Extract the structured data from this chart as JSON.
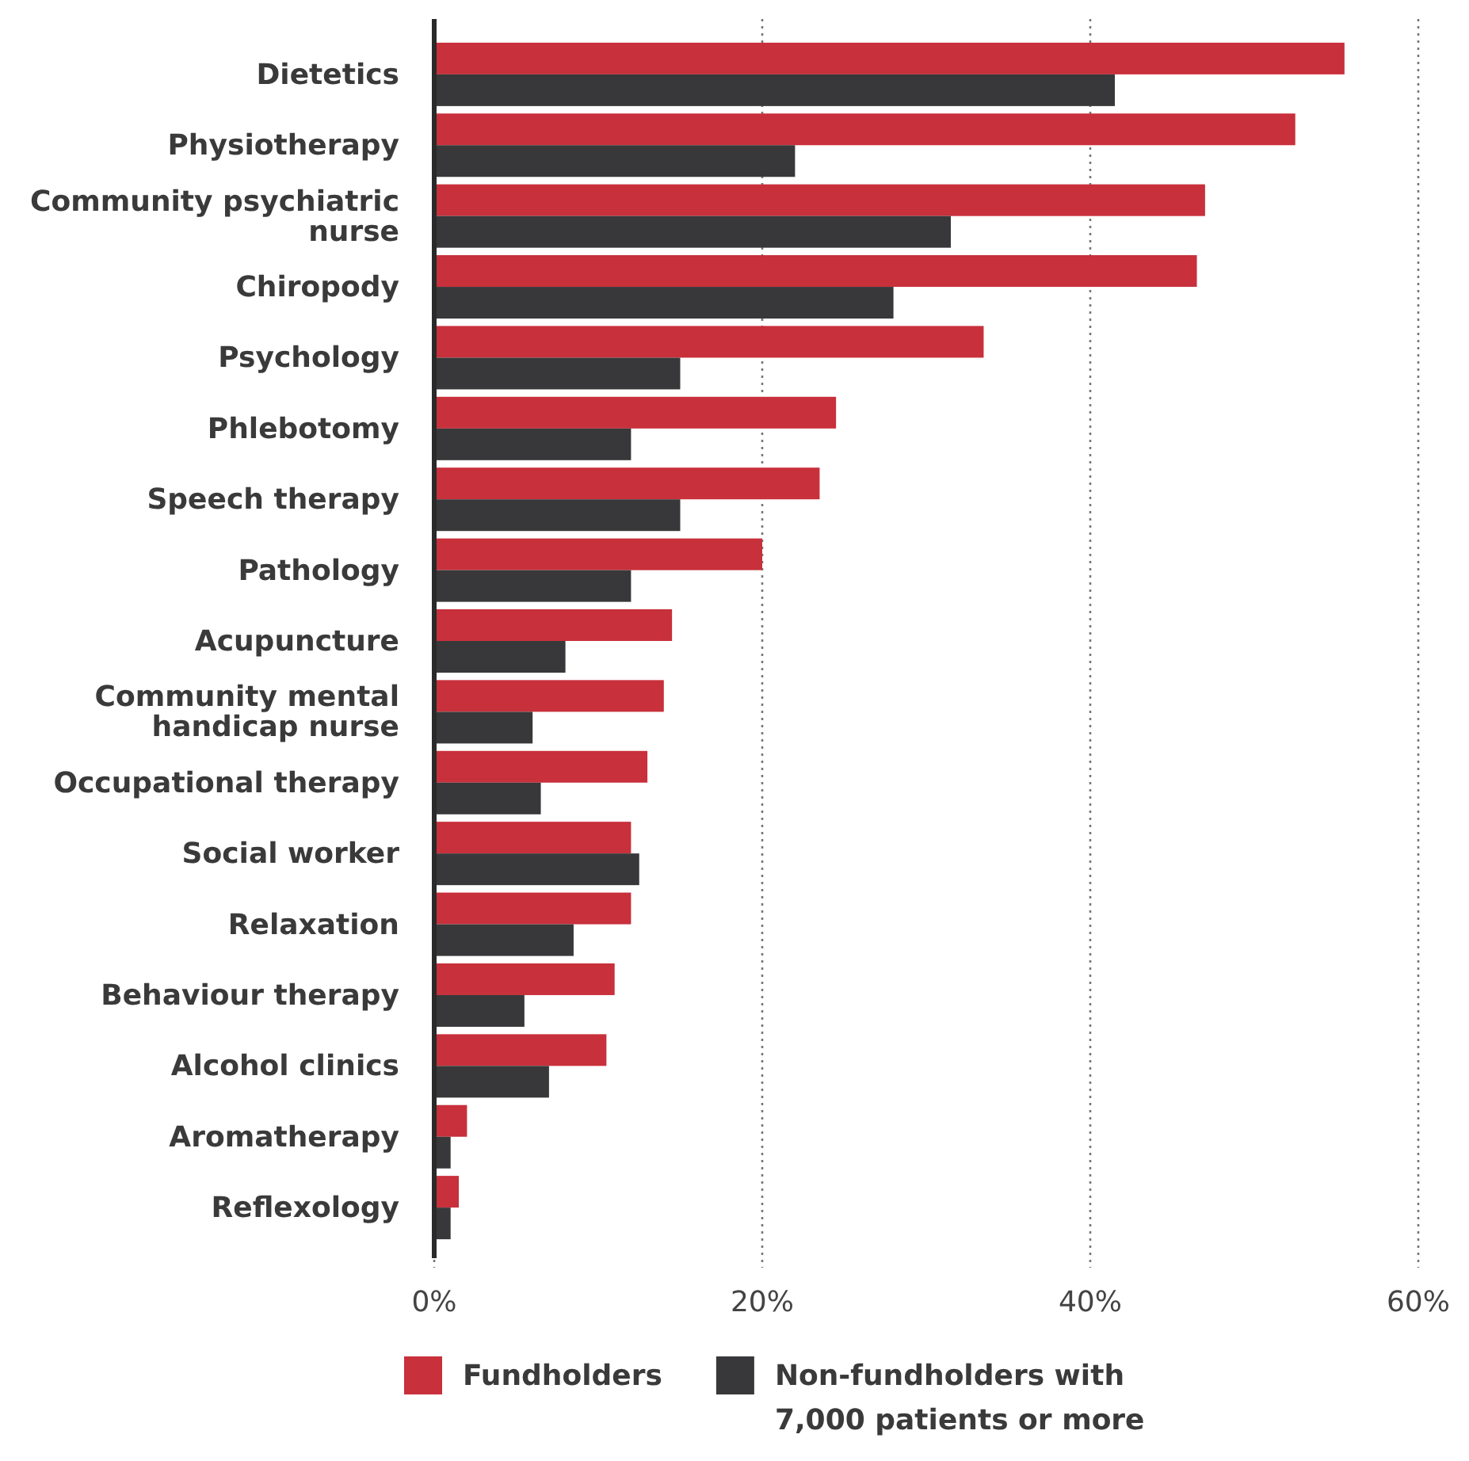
{
  "chart_data": {
    "type": "bar",
    "orientation": "horizontal",
    "categories": [
      "Dietetics",
      "Physiotherapy",
      "Community psychiatric nurse",
      "Chiropody",
      "Psychology",
      "Phlebotomy",
      "Speech therapy",
      "Pathology",
      "Acupuncture",
      "Community mental handicap nurse",
      "Occupational therapy",
      "Social worker",
      "Relaxation",
      "Behaviour therapy",
      "Alcohol clinics",
      "Aromatherapy",
      "Reflexology"
    ],
    "series": [
      {
        "name": "Fundholders",
        "color": "#c8303b",
        "values": [
          55.5,
          52.5,
          47,
          46.5,
          33.5,
          24.5,
          23.5,
          20,
          14.5,
          14,
          13,
          12,
          12,
          11,
          10.5,
          2,
          1.5
        ]
      },
      {
        "name": "Non-fundholders with 7,000 patients or more",
        "color": "#38383a",
        "values": [
          41.5,
          22,
          31.5,
          28,
          15,
          12,
          15,
          12,
          8,
          6,
          6.5,
          12.5,
          8.5,
          5.5,
          7,
          1,
          1
        ]
      }
    ],
    "xlim": [
      0,
      60
    ],
    "xticks": [
      {
        "value": 0,
        "label": "0%"
      },
      {
        "value": 20,
        "label": "20%"
      },
      {
        "value": 40,
        "label": "40%"
      },
      {
        "value": 60,
        "label": "60%"
      }
    ],
    "grid": "x",
    "legend": "bottom"
  }
}
